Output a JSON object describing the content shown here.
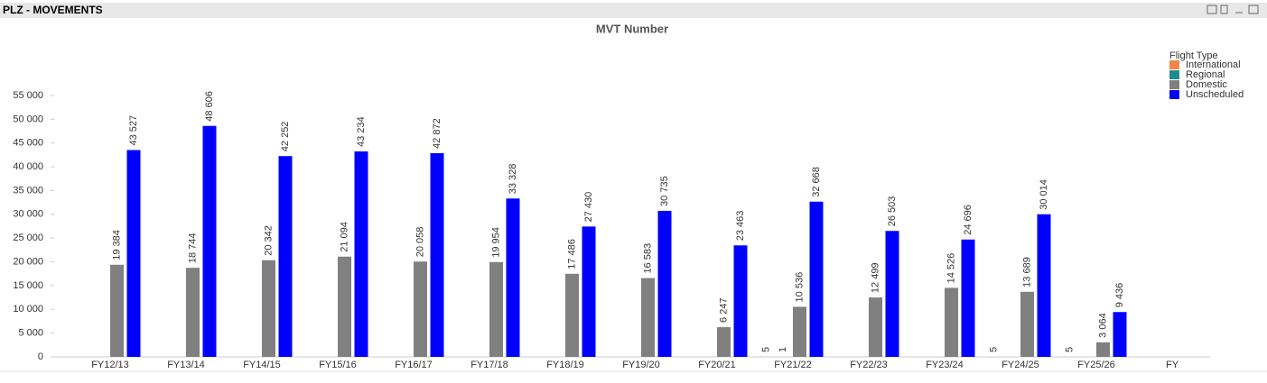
{
  "header": {
    "title": "PLZ - MOVEMENTS"
  },
  "chart_data": {
    "type": "bar",
    "title": "MVT Number",
    "legend_title": "Flight Type",
    "legend_position": "top-right",
    "categories": [
      "FY12/13",
      "FY13/14",
      "FY14/15",
      "FY15/16",
      "FY16/17",
      "FY17/18",
      "FY18/19",
      "FY19/20",
      "FY20/21",
      "FY21/22",
      "FY22/23",
      "FY23/24",
      "FY24/25",
      "FY25/26",
      "FY"
    ],
    "series": [
      {
        "name": "International",
        "color": "#f4834a",
        "values": [
          null,
          null,
          null,
          null,
          null,
          null,
          null,
          null,
          null,
          5,
          null,
          null,
          5,
          5,
          null
        ]
      },
      {
        "name": "Regional",
        "color": "#1e8c8c",
        "values": [
          null,
          null,
          null,
          null,
          null,
          null,
          null,
          null,
          null,
          1,
          null,
          null,
          null,
          null,
          null
        ]
      },
      {
        "name": "Domestic",
        "color": "#808080",
        "values": [
          19384,
          18744,
          20342,
          21094,
          20058,
          19954,
          17486,
          16583,
          6247,
          10536,
          12499,
          14526,
          13689,
          3064,
          null
        ],
        "value_labels": [
          "19 384",
          "18 744",
          "20 342",
          "21 094",
          "20 058",
          "19 954",
          "17 486",
          "16 583",
          "6 247",
          "10 536",
          "12 499",
          "14 526",
          "13 689",
          "3 064",
          null
        ]
      },
      {
        "name": "Unscheduled",
        "color": "#0000ff",
        "values": [
          43527,
          48606,
          42252,
          43234,
          42872,
          33328,
          27430,
          30735,
          23463,
          32668,
          26503,
          24696,
          30014,
          9436,
          null
        ],
        "value_labels": [
          "43 527",
          "48 606",
          "42 252",
          "43 234",
          "42 872",
          "33 328",
          "27 430",
          "30 735",
          "23 463",
          "32 668",
          "26 503",
          "24 696",
          "30 014",
          "9 436",
          null
        ]
      }
    ],
    "ylim": [
      0,
      55000
    ],
    "yticks": [
      0,
      {
        "value": 5000,
        "label": "5 000"
      },
      {
        "value": 10000,
        "label": "10 000"
      },
      {
        "value": 15000,
        "label": "15 000"
      },
      {
        "value": 20000,
        "label": "20 000"
      },
      {
        "value": 25000,
        "label": "25 000"
      },
      {
        "value": 30000,
        "label": "30 000"
      },
      {
        "value": 35000,
        "label": "35 000"
      },
      {
        "value": 40000,
        "label": "40 000"
      },
      {
        "value": 45000,
        "label": "45 000"
      },
      {
        "value": 50000,
        "label": "50 000"
      },
      {
        "value": 55000,
        "label": "55 000"
      }
    ],
    "grid": false
  }
}
